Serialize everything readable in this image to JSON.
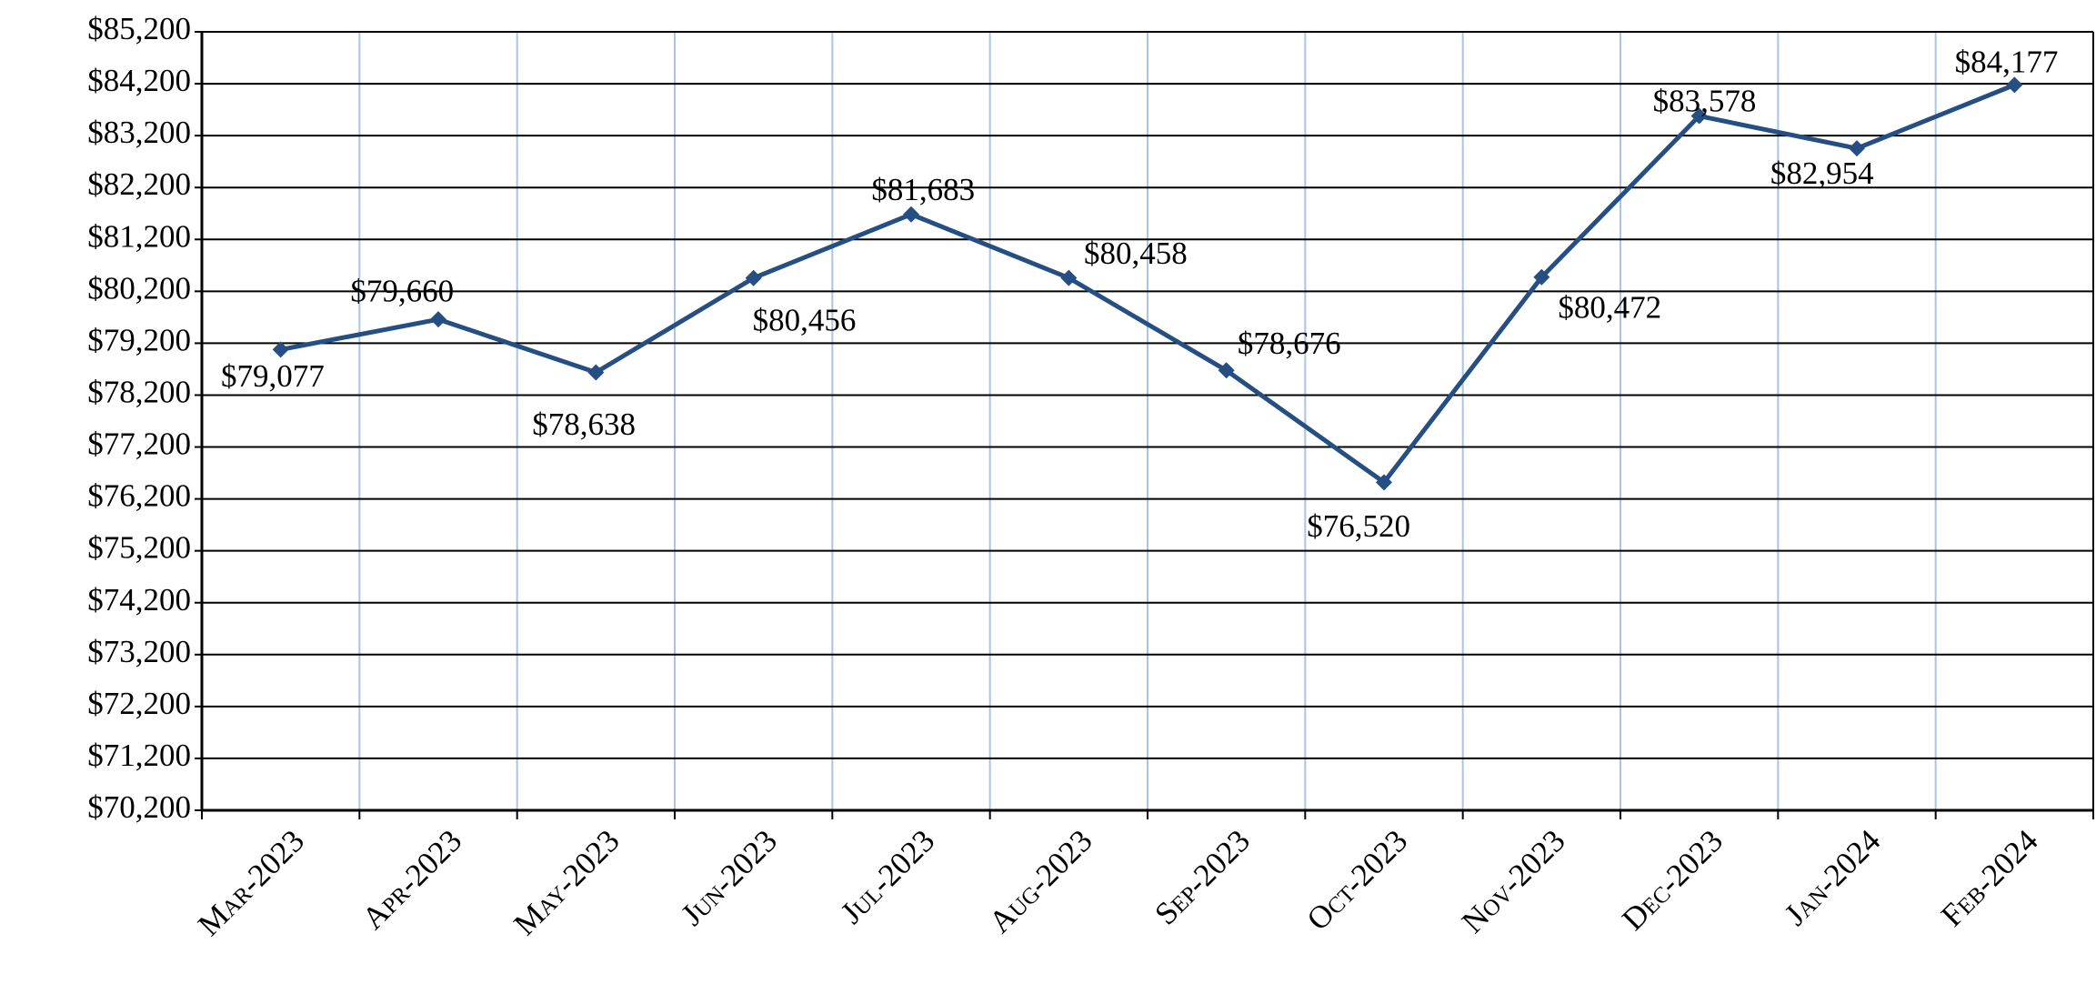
{
  "chart_data": {
    "type": "line",
    "categories": [
      "Mar-2023",
      "Apr-2023",
      "May-2023",
      "Jun-2023",
      "Jul-2023",
      "Aug-2023",
      "Sep-2023",
      "Oct-2023",
      "Nov-2023",
      "Dec-2023",
      "Jan-2024",
      "Feb-2024"
    ],
    "series": [
      {
        "color": "#254e82",
        "values": [
          79077,
          79660,
          78638,
          80456,
          81683,
          80458,
          78676,
          76520,
          80472,
          83578,
          82954,
          84177
        ],
        "value_labels": [
          "$79,077",
          "$79,660",
          "$78,638",
          "$80,456",
          "$81,683",
          "$80,458",
          "$78,676",
          "$76,520",
          "$80,472",
          "$83,578",
          "$82,954",
          "$84,177"
        ]
      }
    ],
    "ylim": [
      70200,
      85200
    ],
    "yticks": [
      {
        "value": 70200,
        "label": "$70,200"
      },
      {
        "value": 71200,
        "label": "$71,200"
      },
      {
        "value": 72200,
        "label": "$72,200"
      },
      {
        "value": 73200,
        "label": "$73,200"
      },
      {
        "value": 74200,
        "label": "$74,200"
      },
      {
        "value": 75200,
        "label": "$75,200"
      },
      {
        "value": 76200,
        "label": "$76,200"
      },
      {
        "value": 77200,
        "label": "$77,200"
      },
      {
        "value": 78200,
        "label": "$78,200"
      },
      {
        "value": 79200,
        "label": "$79,200"
      },
      {
        "value": 80200,
        "label": "$80,200"
      },
      {
        "value": 81200,
        "label": "$81,200"
      },
      {
        "value": 82200,
        "label": "$82,200"
      },
      {
        "value": 83200,
        "label": "$83,200"
      },
      {
        "value": 84200,
        "label": "$84,200"
      },
      {
        "value": 85200,
        "label": "$85,200"
      }
    ],
    "grid": true
  }
}
